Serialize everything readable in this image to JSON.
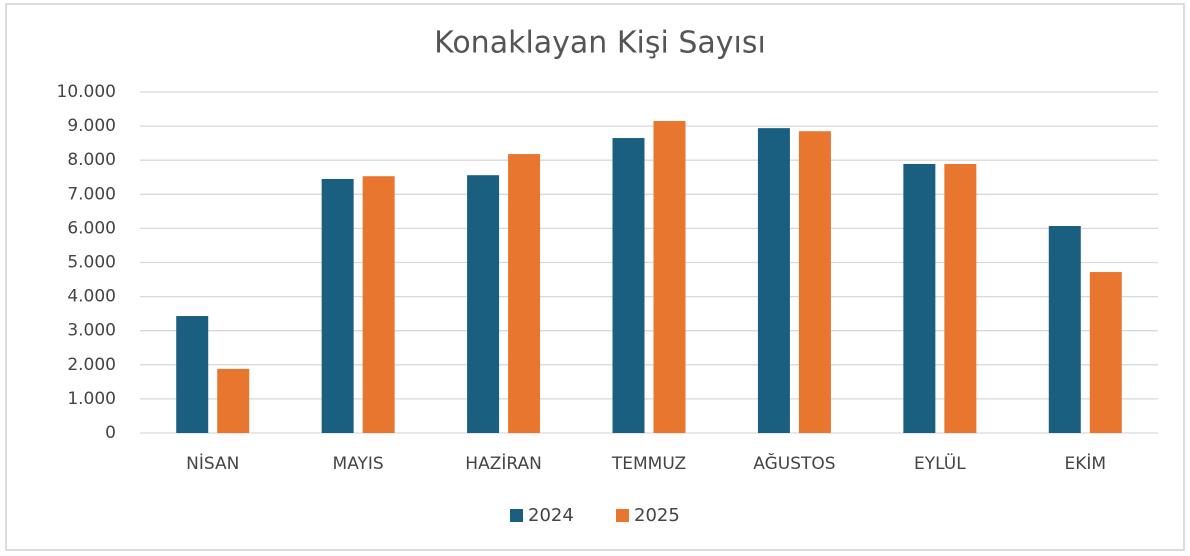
{
  "chart_data": {
    "type": "bar",
    "title": "Konaklayan Kişi Sayısı",
    "categories": [
      "NİSAN",
      "MAYIS",
      "HAZİRAN",
      "TEMMUZ",
      "AĞUSTOS",
      "EYLÜL",
      "EKİM"
    ],
    "series": [
      {
        "name": "2024",
        "color": "#1b5f80",
        "values": [
          3430,
          7450,
          7560,
          8650,
          8940,
          7890,
          6070
        ]
      },
      {
        "name": "2025",
        "color": "#e8762f",
        "values": [
          1880,
          7530,
          8180,
          9150,
          8850,
          7890,
          4720
        ]
      }
    ],
    "ylim": [
      0,
      10000
    ],
    "yticks": [
      0,
      {
        "value": 1000,
        "label": "1.000"
      },
      {
        "value": 2000,
        "label": "2.000"
      },
      {
        "value": 3000,
        "label": "3.000"
      },
      {
        "value": 4000,
        "label": "4.000"
      },
      {
        "value": 5000,
        "label": "5.000"
      },
      {
        "value": 6000,
        "label": "6.000"
      },
      {
        "value": 7000,
        "label": "7.000"
      },
      {
        "value": 8000,
        "label": "8.000"
      },
      {
        "value": 9000,
        "label": "9.000"
      },
      {
        "value": 10000,
        "label": "10.000"
      }
    ],
    "grid": true,
    "legend": "bottom"
  }
}
